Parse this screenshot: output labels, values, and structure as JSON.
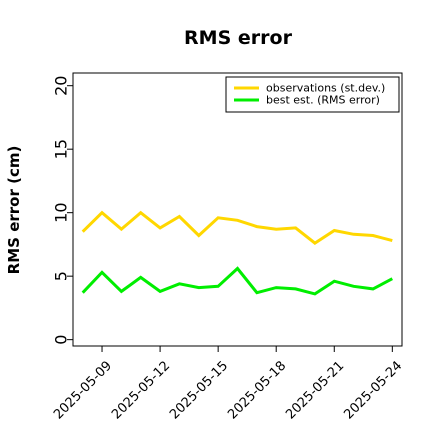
{
  "chart_data": {
    "type": "line",
    "title": "RMS error",
    "xlabel": "",
    "ylabel": "RMS error (cm)",
    "x": [
      "2025-05-08",
      "2025-05-09",
      "2025-05-10",
      "2025-05-11",
      "2025-05-12",
      "2025-05-13",
      "2025-05-14",
      "2025-05-15",
      "2025-05-16",
      "2025-05-17",
      "2025-05-18",
      "2025-05-19",
      "2025-05-20",
      "2025-05-21",
      "2025-05-22",
      "2025-05-23",
      "2025-05-24"
    ],
    "series": [
      {
        "name": "observations (st.dev.)",
        "color": "#ffd700",
        "values": [
          8.5,
          10.0,
          8.7,
          10.0,
          8.8,
          9.7,
          8.2,
          9.6,
          9.4,
          8.9,
          8.7,
          8.8,
          7.6,
          8.6,
          8.3,
          8.2,
          7.8
        ]
      },
      {
        "name": "best est. (RMS error)",
        "color": "#00ee00",
        "values": [
          3.7,
          5.3,
          3.8,
          4.9,
          3.8,
          4.4,
          4.1,
          4.2,
          5.6,
          3.7,
          4.1,
          4.0,
          3.6,
          4.6,
          4.2,
          4.0,
          4.8
        ]
      }
    ],
    "ylim": [
      -0.5,
      21
    ],
    "xlim": [
      "2025-05-07T12",
      "2025-05-24T12"
    ],
    "yticks": [
      0,
      5,
      10,
      15,
      20
    ],
    "xticks": [
      "2025-05-09",
      "2025-05-12",
      "2025-05-15",
      "2025-05-18",
      "2025-05-21",
      "2025-05-24"
    ],
    "highlight_tick": "2025-05-15",
    "highlight_color": "#228b22",
    "grid": false,
    "legend": "top-right"
  }
}
